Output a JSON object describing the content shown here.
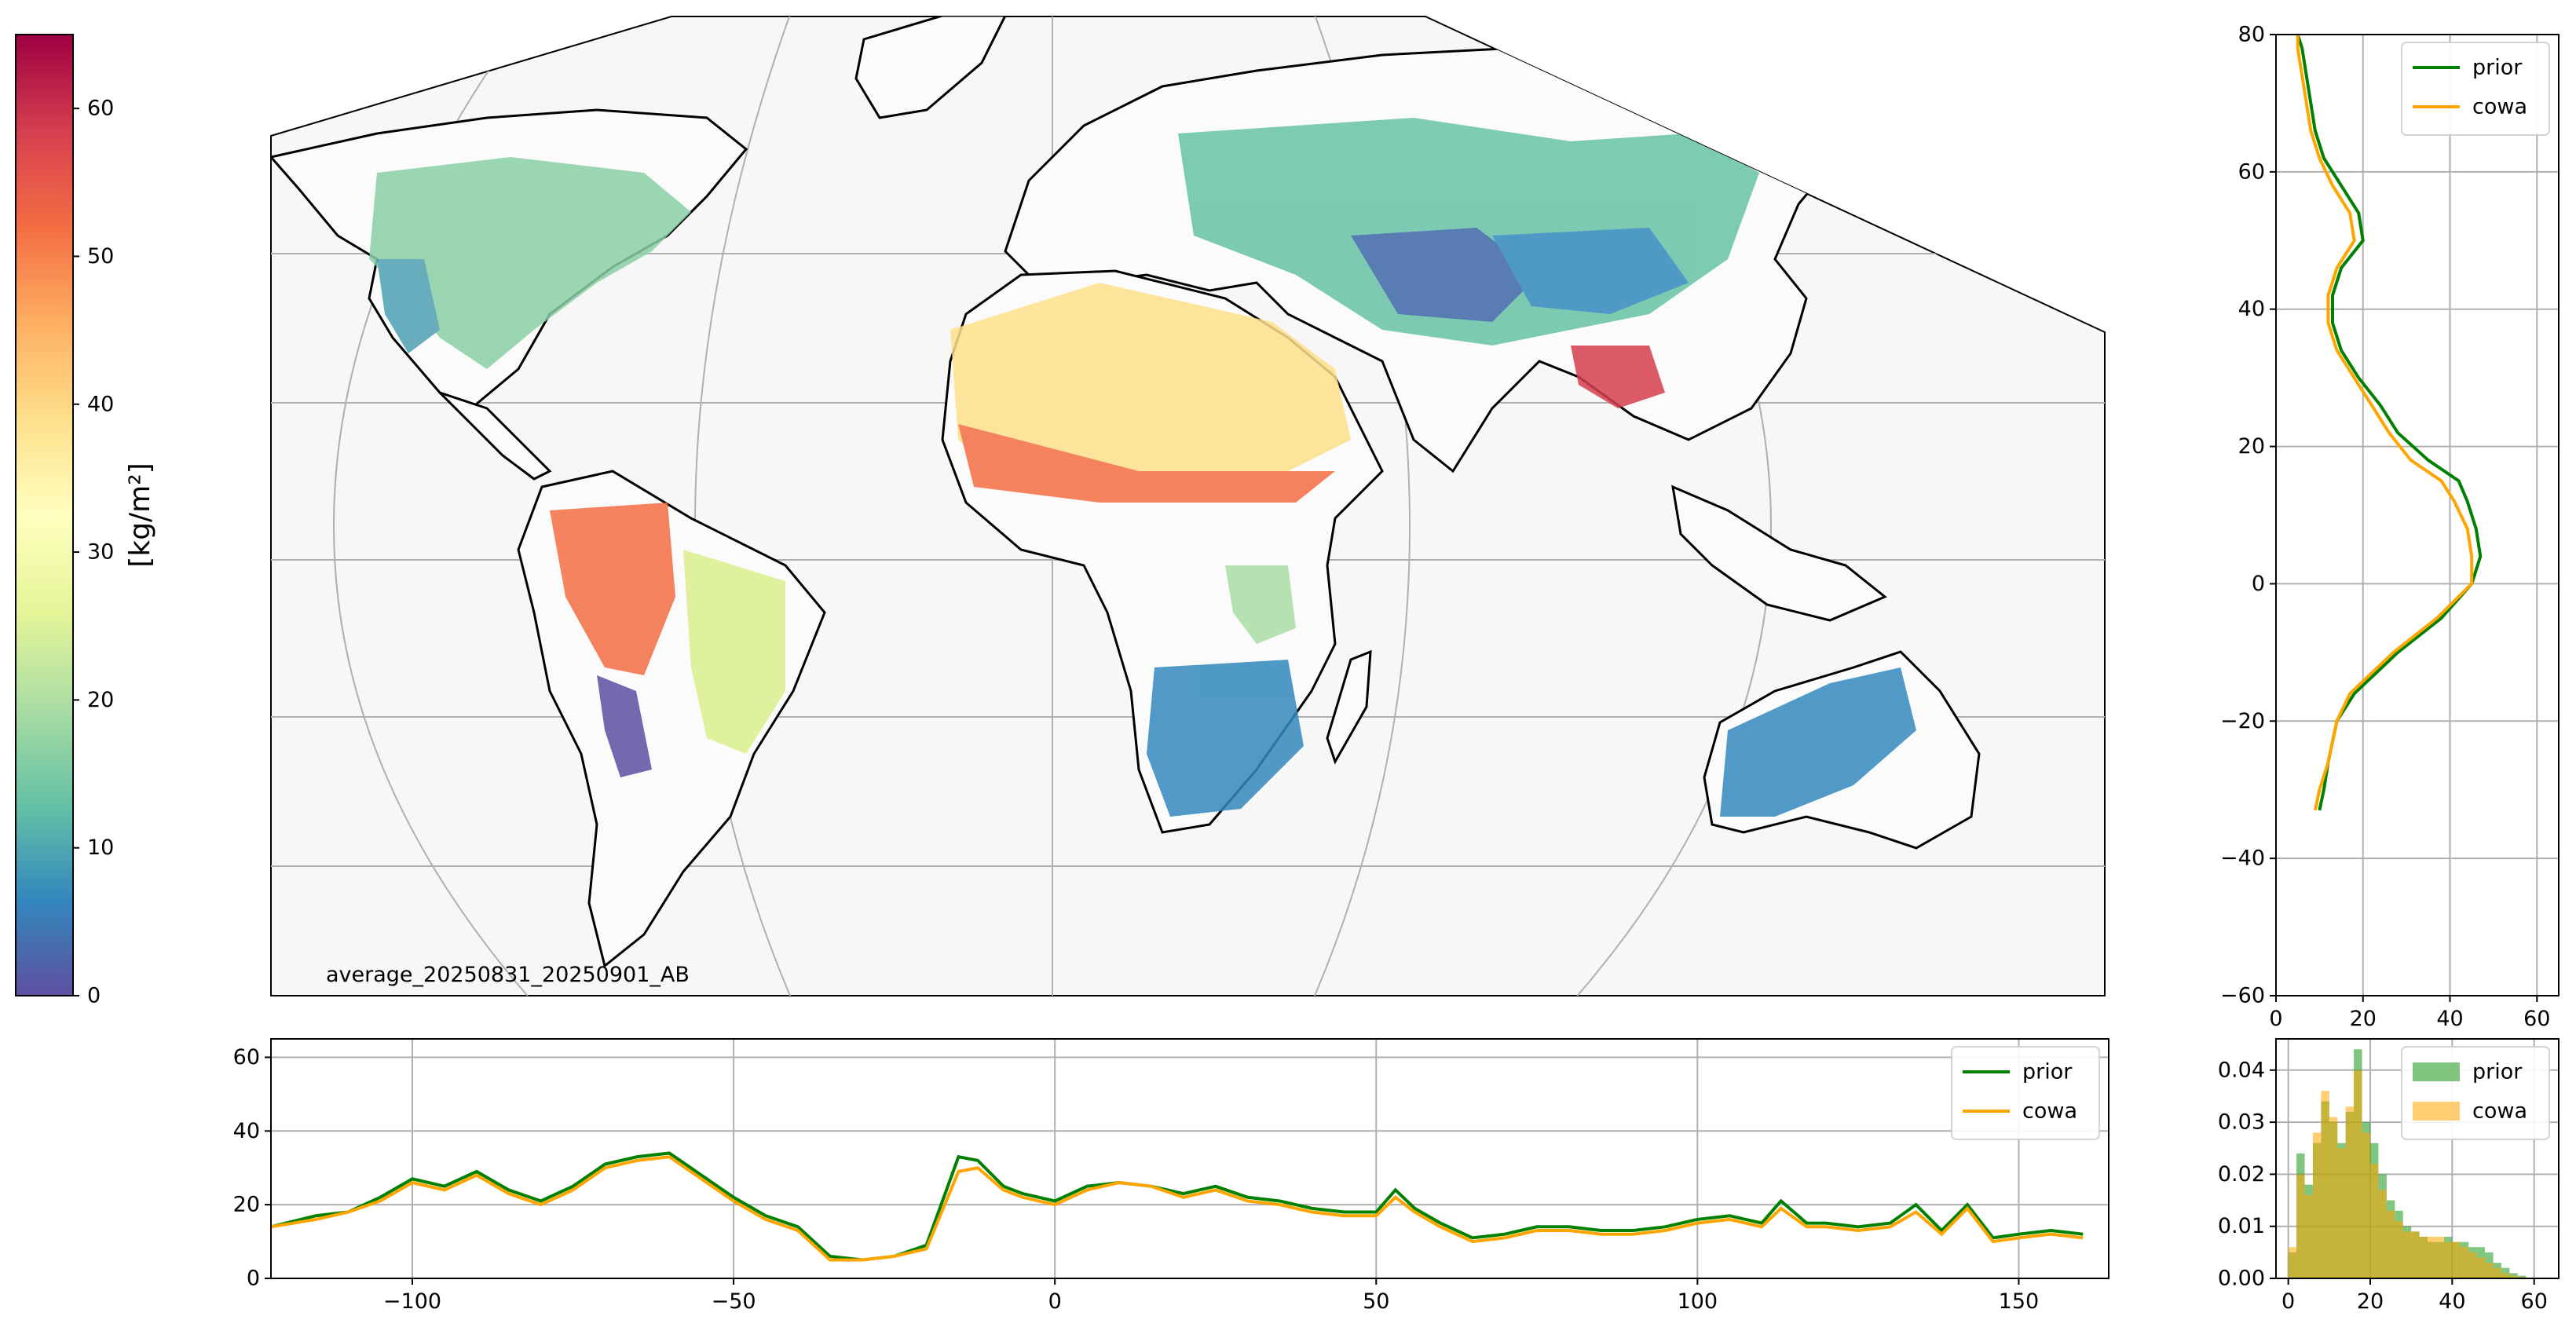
{
  "colorbar": {
    "label": "[kg/m²]",
    "ticks": [
      0,
      10,
      20,
      30,
      40,
      50,
      60
    ],
    "range": [
      0,
      65
    ],
    "colormap_stops": [
      "#5e4fa2",
      "#3288bd",
      "#66c2a5",
      "#abdda4",
      "#e6f598",
      "#ffffbf",
      "#fee08b",
      "#fdae61",
      "#f46d43",
      "#d53e4f",
      "#9e0142"
    ]
  },
  "map": {
    "annotation": "average_20250831_20250901_AB",
    "projection": "Mollweide-style",
    "background": "#f7f7f7"
  },
  "chart_data": [
    {
      "type": "line",
      "panel": "latitude-profile",
      "xlim": [
        0,
        65
      ],
      "ylim": [
        -60,
        80
      ],
      "xticks": [
        0,
        20,
        40,
        60
      ],
      "yticks": [
        -60,
        -40,
        -20,
        0,
        20,
        40,
        60,
        80
      ],
      "grid": true,
      "legend_position": "top-right",
      "series": [
        {
          "name": "prior",
          "color": "#008000",
          "y": [
            -33,
            -30,
            -26,
            -20,
            -16,
            -10,
            -5,
            0,
            4,
            8,
            12,
            15,
            18,
            22,
            26,
            30,
            34,
            38,
            42,
            46,
            50,
            54,
            58,
            62,
            66,
            70,
            74,
            78,
            80
          ],
          "x": [
            10,
            11,
            12,
            14,
            18,
            28,
            38,
            45,
            47,
            46,
            44,
            42,
            35,
            28,
            24,
            19,
            15,
            13,
            13,
            15,
            20,
            19,
            15,
            11,
            9,
            8,
            7,
            6,
            5
          ]
        },
        {
          "name": "cowa",
          "color": "#ffa500",
          "y": [
            -33,
            -30,
            -26,
            -20,
            -16,
            -10,
            -5,
            0,
            4,
            8,
            12,
            15,
            18,
            22,
            26,
            30,
            34,
            38,
            42,
            46,
            50,
            54,
            58,
            62,
            66,
            70,
            74,
            78,
            80
          ],
          "x": [
            9,
            10,
            12,
            14,
            17,
            27,
            37,
            45,
            45,
            44,
            41,
            38,
            31,
            26,
            22,
            18,
            14,
            12,
            12,
            14,
            18,
            17,
            13,
            10,
            8,
            7,
            6,
            5,
            5
          ]
        }
      ]
    },
    {
      "type": "line",
      "panel": "longitude-profile",
      "xlim": [
        -122,
        164
      ],
      "ylim": [
        0,
        65
      ],
      "xticks": [
        -100,
        -50,
        0,
        50,
        100,
        150
      ],
      "yticks": [
        0,
        20,
        40,
        60
      ],
      "grid": true,
      "legend_position": "top-right",
      "series": [
        {
          "name": "prior",
          "color": "#008000",
          "x": [
            -122,
            -115,
            -110,
            -105,
            -100,
            -95,
            -90,
            -85,
            -80,
            -75,
            -70,
            -65,
            -60,
            -55,
            -50,
            -45,
            -40,
            -35,
            -30,
            -25,
            -20,
            -15,
            -12,
            -8,
            -5,
            0,
            5,
            10,
            15,
            20,
            25,
            30,
            35,
            40,
            45,
            50,
            53,
            56,
            60,
            65,
            70,
            75,
            80,
            85,
            90,
            95,
            100,
            105,
            110,
            113,
            117,
            120,
            125,
            130,
            134,
            138,
            142,
            146,
            150,
            155,
            160
          ],
          "y": [
            14,
            17,
            18,
            22,
            27,
            25,
            29,
            24,
            21,
            25,
            31,
            33,
            34,
            28,
            22,
            17,
            14,
            6,
            5,
            6,
            9,
            33,
            32,
            25,
            23,
            21,
            25,
            26,
            25,
            23,
            25,
            22,
            21,
            19,
            18,
            18,
            24,
            19,
            15,
            11,
            12,
            14,
            14,
            13,
            13,
            14,
            16,
            17,
            15,
            21,
            15,
            15,
            14,
            15,
            20,
            13,
            20,
            11,
            12,
            13,
            12
          ]
        },
        {
          "name": "cowa",
          "color": "#ffa500",
          "x": [
            -122,
            -115,
            -110,
            -105,
            -100,
            -95,
            -90,
            -85,
            -80,
            -75,
            -70,
            -65,
            -60,
            -55,
            -50,
            -45,
            -40,
            -35,
            -30,
            -25,
            -20,
            -15,
            -12,
            -8,
            -5,
            0,
            5,
            10,
            15,
            20,
            25,
            30,
            35,
            40,
            45,
            50,
            53,
            56,
            60,
            65,
            70,
            75,
            80,
            85,
            90,
            95,
            100,
            105,
            110,
            113,
            117,
            120,
            125,
            130,
            134,
            138,
            142,
            146,
            150,
            155,
            160
          ],
          "y": [
            14,
            16,
            18,
            21,
            26,
            24,
            28,
            23,
            20,
            24,
            30,
            32,
            33,
            27,
            21,
            16,
            13,
            5,
            5,
            6,
            8,
            29,
            30,
            24,
            22,
            20,
            24,
            26,
            25,
            22,
            24,
            21,
            20,
            18,
            17,
            17,
            22,
            18,
            14,
            10,
            11,
            13,
            13,
            12,
            12,
            13,
            15,
            16,
            14,
            19,
            14,
            14,
            13,
            14,
            18,
            12,
            19,
            10,
            11,
            12,
            11
          ]
        }
      ]
    },
    {
      "type": "bar",
      "panel": "histogram",
      "xlim": [
        -3,
        66
      ],
      "ylim": [
        0,
        0.046
      ],
      "xticks": [
        0,
        20,
        40,
        60
      ],
      "yticks": [
        0.0,
        0.01,
        0.02,
        0.03,
        0.04
      ],
      "ytick_labels": [
        "0.00",
        "0.01",
        "0.02",
        "0.03",
        "0.04"
      ],
      "grid": true,
      "legend_position": "top-right",
      "bin_edges": [
        0,
        2,
        4,
        6,
        8,
        10,
        12,
        14,
        16,
        18,
        20,
        22,
        24,
        26,
        28,
        30,
        32,
        34,
        36,
        38,
        40,
        42,
        44,
        46,
        48,
        50,
        52,
        54,
        56,
        58
      ],
      "series": [
        {
          "name": "prior",
          "color": "#2ca02c",
          "opacity": 0.6,
          "values": [
            0.005,
            0.024,
            0.018,
            0.026,
            0.034,
            0.03,
            0.026,
            0.032,
            0.044,
            0.03,
            0.026,
            0.02,
            0.015,
            0.013,
            0.01,
            0.009,
            0.008,
            0.007,
            0.007,
            0.008,
            0.007,
            0.007,
            0.006,
            0.006,
            0.005,
            0.003,
            0.002,
            0.001,
            0.0005
          ]
        },
        {
          "name": "cowa",
          "color": "#ffa500",
          "opacity": 0.55,
          "values": [
            0.006,
            0.02,
            0.016,
            0.028,
            0.036,
            0.031,
            0.025,
            0.033,
            0.04,
            0.028,
            0.022,
            0.017,
            0.013,
            0.011,
            0.009,
            0.009,
            0.008,
            0.008,
            0.008,
            0.007,
            0.007,
            0.006,
            0.005,
            0.004,
            0.003,
            0.002,
            0.001,
            0.0005,
            0.0002
          ]
        }
      ]
    }
  ]
}
